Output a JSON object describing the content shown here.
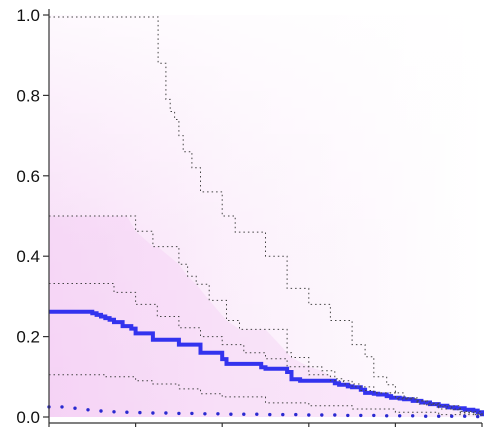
{
  "chart_data": {
    "type": "line",
    "title": "",
    "xlabel": "",
    "ylabel": "",
    "xlim": [
      0,
      100
    ],
    "ylim": [
      0,
      1
    ],
    "y_ticks": [
      "0.0",
      "0.2",
      "0.4",
      "0.6",
      "0.8",
      "1.0"
    ],
    "y_tick_values": [
      0,
      0.2,
      0.4,
      0.6,
      0.8,
      1.0
    ],
    "x_ticks_values": [
      0,
      20,
      40,
      60,
      80,
      100
    ],
    "x_tick_labels_visible": false,
    "grid": false,
    "colors": {
      "median_line": "#3333ee",
      "band_line": "#444444",
      "shading": "#f4c8f4",
      "lower_points": "#2a2ad0",
      "axis": "#333333"
    },
    "series": [
      {
        "style": "solid-blue",
        "x": [
          0,
          9,
          10,
          11,
          12,
          13,
          14,
          15,
          16,
          17,
          19,
          20,
          22,
          24,
          26,
          30,
          35,
          40,
          41,
          49,
          50,
          55,
          56,
          58,
          62,
          66,
          67,
          69,
          70,
          72,
          73,
          75,
          76,
          78,
          79,
          81,
          82,
          84,
          86,
          88,
          90,
          92,
          94,
          96,
          98,
          99,
          100
        ],
        "y": [
          0.262,
          0.262,
          0.258,
          0.254,
          0.25,
          0.246,
          0.242,
          0.236,
          0.236,
          0.226,
          0.22,
          0.208,
          0.208,
          0.192,
          0.192,
          0.18,
          0.16,
          0.144,
          0.132,
          0.124,
          0.12,
          0.112,
          0.094,
          0.09,
          0.09,
          0.084,
          0.08,
          0.076,
          0.074,
          0.068,
          0.06,
          0.058,
          0.056,
          0.052,
          0.048,
          0.046,
          0.044,
          0.04,
          0.036,
          0.032,
          0.028,
          0.024,
          0.022,
          0.018,
          0.016,
          0.012,
          0.002
        ]
      },
      {
        "style": "dotted-upper-0.975",
        "x": [
          0,
          25,
          25.2,
          27,
          28,
          29,
          30,
          31,
          33,
          35,
          40,
          43,
          50,
          55,
          60,
          65,
          70,
          73,
          75,
          78,
          80,
          82,
          85,
          87,
          90,
          93,
          95,
          98,
          100
        ],
        "y": [
          0.995,
          0.995,
          0.88,
          0.79,
          0.76,
          0.74,
          0.7,
          0.66,
          0.62,
          0.56,
          0.5,
          0.46,
          0.4,
          0.32,
          0.28,
          0.24,
          0.18,
          0.15,
          0.1,
          0.08,
          0.06,
          0.045,
          0.04,
          0.03,
          0.025,
          0.018,
          0.012,
          0.006,
          0.002
        ]
      },
      {
        "style": "dotted-upper-0.75",
        "x": [
          0,
          18,
          20,
          24,
          25,
          30,
          32,
          34,
          37,
          41,
          44,
          50,
          55,
          56,
          60,
          63,
          66,
          68,
          72,
          75,
          80,
          85,
          88,
          90,
          95,
          100
        ],
        "y": [
          0.5,
          0.5,
          0.462,
          0.424,
          0.424,
          0.38,
          0.35,
          0.33,
          0.29,
          0.24,
          0.218,
          0.218,
          0.16,
          0.148,
          0.125,
          0.115,
          0.095,
          0.082,
          0.066,
          0.06,
          0.048,
          0.04,
          0.034,
          0.028,
          0.014,
          0.004
        ]
      },
      {
        "style": "dotted-q-0.5b",
        "x": [
          0,
          10,
          15,
          20,
          25,
          30,
          35,
          40,
          45,
          50,
          55,
          60,
          65,
          70,
          75,
          80,
          85,
          90,
          95,
          100
        ],
        "y": [
          0.332,
          0.332,
          0.31,
          0.28,
          0.25,
          0.222,
          0.2,
          0.18,
          0.16,
          0.145,
          0.125,
          0.105,
          0.09,
          0.075,
          0.06,
          0.045,
          0.032,
          0.02,
          0.01,
          0.002
        ]
      },
      {
        "style": "dotted-lower-0.25",
        "x": [
          0,
          10,
          13,
          20,
          24,
          30,
          35,
          40,
          50,
          60,
          70,
          80,
          90,
          100
        ],
        "y": [
          0.105,
          0.105,
          0.1,
          0.09,
          0.082,
          0.07,
          0.058,
          0.05,
          0.035,
          0.028,
          0.02,
          0.012,
          0.006,
          0.002
        ]
      },
      {
        "style": "points-lower",
        "x": [
          0,
          3,
          6,
          9,
          12,
          15,
          18,
          21,
          24,
          27,
          30,
          33,
          36,
          39,
          42,
          45,
          48,
          51,
          54,
          57,
          60,
          63,
          66,
          69,
          72,
          75,
          78,
          81,
          84,
          87,
          90,
          93,
          96,
          99
        ],
        "y": [
          0.025,
          0.025,
          0.022,
          0.018,
          0.015,
          0.013,
          0.012,
          0.011,
          0.01,
          0.01,
          0.009,
          0.009,
          0.008,
          0.008,
          0.007,
          0.007,
          0.007,
          0.006,
          0.006,
          0.006,
          0.005,
          0.005,
          0.005,
          0.004,
          0.004,
          0.004,
          0.003,
          0.003,
          0.003,
          0.002,
          0.002,
          0.002,
          0.002,
          0.001
        ]
      }
    ]
  }
}
